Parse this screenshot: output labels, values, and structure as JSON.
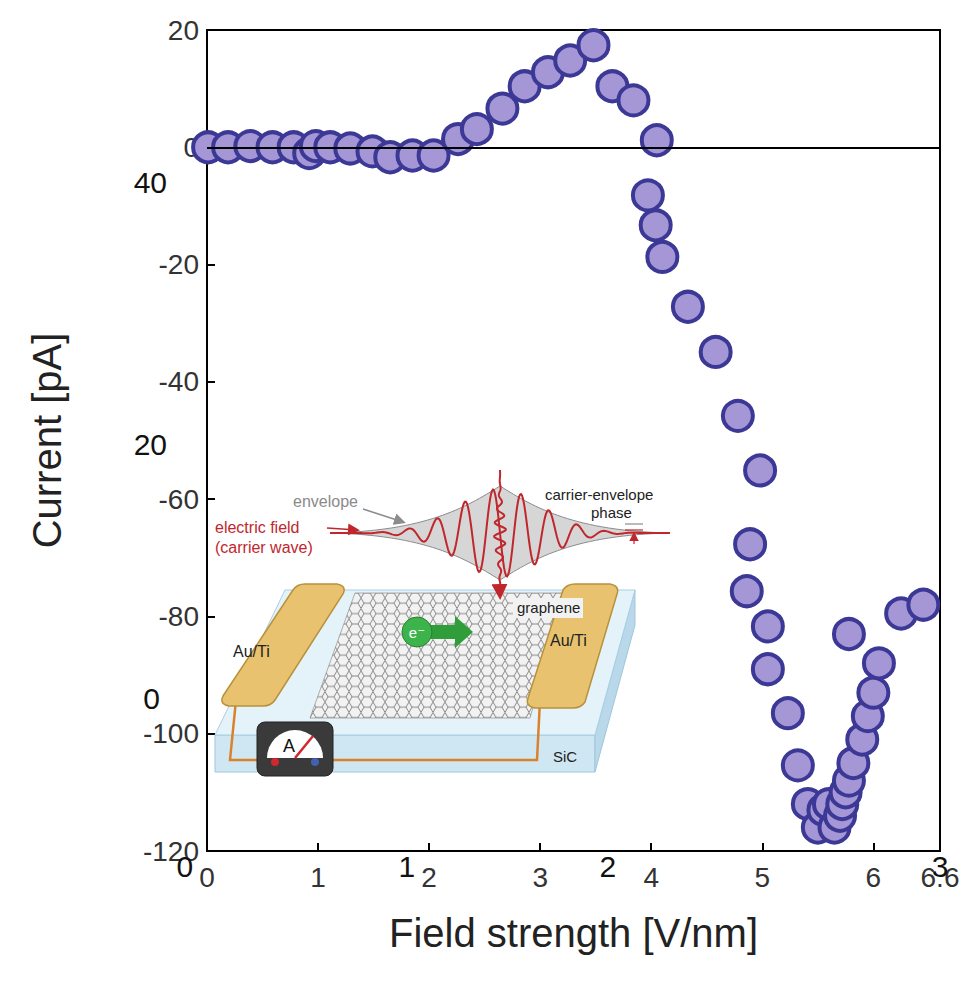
{
  "chart_data": {
    "type": "scatter",
    "x_label": "Field strength [V/nm]",
    "y_label": "Current [pA]",
    "x": [
      0.01,
      0.19,
      0.39,
      0.59,
      0.78,
      0.92,
      0.98,
      1.11,
      1.29,
      1.49,
      1.65,
      1.85,
      2.04,
      2.26,
      2.43,
      2.66,
      2.86,
      3.07,
      3.27,
      3.48,
      3.65,
      3.84,
      4.05,
      3.97,
      4.04,
      4.1,
      4.33,
      4.58,
      4.78,
      4.98,
      4.89,
      4.86,
      5.05,
      5.05,
      5.23,
      5.32,
      5.41,
      5.5,
      5.55,
      5.6,
      5.65,
      5.7,
      5.72,
      5.75,
      5.78,
      5.82,
      5.9,
      5.95,
      6.0,
      6.05,
      5.78,
      6.25,
      6.45
    ],
    "values": [
      0,
      0,
      0.2,
      0,
      0,
      -1,
      0.2,
      0,
      -0.2,
      -0.7,
      -1.7,
      -1.4,
      -1.4,
      1.4,
      3.1,
      6.6,
      10.4,
      12.8,
      14.8,
      17.4,
      10.4,
      8,
      1.2,
      -8.2,
      -13.3,
      -18.7,
      -27.2,
      -34.9,
      -45.8,
      -55.1,
      -67.7,
      -75.7,
      -81.7,
      -89,
      -96.5,
      -105.4,
      -112,
      -116,
      -113,
      -112,
      -116,
      -114,
      -112,
      -110,
      -108,
      -105,
      -101,
      -97,
      -93,
      -88,
      -83,
      -79.5,
      -78
    ],
    "color": "#a596d6",
    "marker": "circle",
    "xlim": [
      0,
      6.6
    ],
    "xticks": [
      0,
      1,
      2,
      3,
      4,
      5
    ],
    "ylim": [
      -120,
      20
    ],
    "yticks": [
      -120,
      -100,
      -80,
      -60,
      -40,
      -20,
      0,
      20
    ],
    "hline": 0,
    "grid": false,
    "annotations": [
      {
        "text": "40",
        "x": -0.51,
        "y": -6
      },
      {
        "text": "20",
        "x": -0.51,
        "y": -50.7
      },
      {
        "text": "0",
        "x": -0.5,
        "y": -94
      },
      {
        "text": "0",
        "x": -0.2,
        "y": -122.7
      },
      {
        "text": "1",
        "x": 1.8,
        "y": -122.7
      },
      {
        "text": "2",
        "x": 3.61,
        "y": -122.7
      },
      {
        "text": "3",
        "x": 6.6,
        "y": -122.7
      }
    ],
    "inset": {
      "envelope_label": "envelope",
      "field_label": [
        "electric field",
        "(carrier wave)"
      ],
      "phase_label": [
        "carrier-envelope",
        "phase"
      ],
      "sheet_label": "graphene",
      "electrode_labels": [
        "Au/Ti",
        "Au/Ti"
      ],
      "substrate_label": "SiC",
      "meter_label": "A",
      "carrier_label": "e⁻"
    }
  }
}
